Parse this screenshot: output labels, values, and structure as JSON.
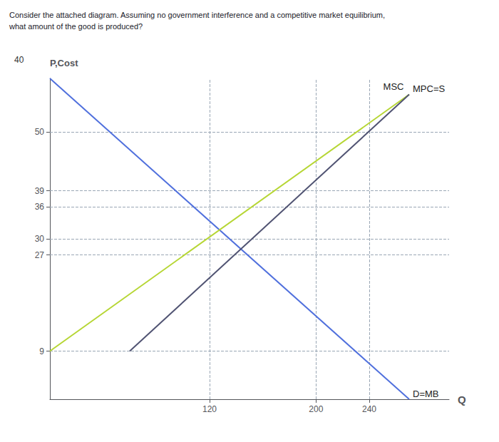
{
  "chart_data": {
    "type": "line",
    "title": "Consider the attached diagram. Assuming no government interference and a competitive market equilibrium,\nwhat amount of the good is produced?",
    "xlabel": "Q",
    "ylabel": "P,Cost",
    "xlim": [
      0,
      300
    ],
    "ylim": [
      0,
      60
    ],
    "xticks": [
      120,
      200,
      240
    ],
    "yticks": [
      9,
      27,
      30,
      36,
      39,
      50
    ],
    "grid": true,
    "annotations": [
      "40"
    ],
    "series": [
      {
        "name": "D=MB",
        "x": [
          0,
          270
        ],
        "values": [
          60,
          0
        ]
      },
      {
        "name": "MPC=S",
        "x": [
          0,
          270
        ],
        "values": [
          9,
          57
        ]
      },
      {
        "name": "MSC",
        "x": [
          60,
          270
        ],
        "values": [
          9,
          57
        ]
      }
    ]
  }
}
